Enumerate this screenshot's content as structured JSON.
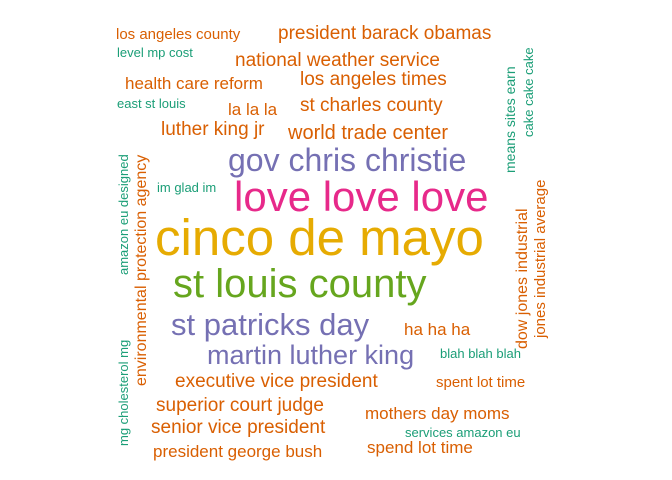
{
  "palette": {
    "teal": "#1b9e77",
    "orange": "#d95f02",
    "purple": "#7570b3",
    "pink": "#e7298a",
    "green": "#66a61e",
    "gold": "#e6ab02"
  },
  "words": [
    {
      "text": "cinco de mayo",
      "color": "gold",
      "freq": 1.0
    },
    {
      "text": "love love love",
      "color": "pink",
      "freq": 0.78
    },
    {
      "text": "st louis county",
      "color": "green",
      "freq": 0.74
    },
    {
      "text": "gov chris christie",
      "color": "purple",
      "freq": 0.62
    },
    {
      "text": "st patricks day",
      "color": "purple",
      "freq": 0.6
    },
    {
      "text": "martin luther king",
      "color": "purple",
      "freq": 0.52
    },
    {
      "text": "president barack obamas",
      "color": "orange",
      "freq": 0.4
    },
    {
      "text": "national weather service",
      "color": "orange",
      "freq": 0.4
    },
    {
      "text": "los angeles times",
      "color": "orange",
      "freq": 0.4
    },
    {
      "text": "st charles county",
      "color": "orange",
      "freq": 0.4
    },
    {
      "text": "world trade center",
      "color": "orange",
      "freq": 0.4
    },
    {
      "text": "luther king jr",
      "color": "orange",
      "freq": 0.38
    },
    {
      "text": "executive vice president",
      "color": "orange",
      "freq": 0.38
    },
    {
      "text": "superior court judge",
      "color": "orange",
      "freq": 0.38
    },
    {
      "text": "senior vice president",
      "color": "orange",
      "freq": 0.38
    },
    {
      "text": "health care reform",
      "color": "orange",
      "freq": 0.36
    },
    {
      "text": "mothers day moms",
      "color": "orange",
      "freq": 0.36
    },
    {
      "text": "ha ha ha",
      "color": "orange",
      "freq": 0.36
    },
    {
      "text": "la la la",
      "color": "orange",
      "freq": 0.34
    },
    {
      "text": "president george bush",
      "color": "orange",
      "freq": 0.34
    },
    {
      "text": "spend lot time",
      "color": "orange",
      "freq": 0.34
    },
    {
      "text": "environmental protection agency",
      "color": "orange",
      "freq": 0.34
    },
    {
      "text": "dow jones industrial",
      "color": "orange",
      "freq": 0.34
    },
    {
      "text": "jones industrial average",
      "color": "orange",
      "freq": 0.32
    },
    {
      "text": "los angeles county",
      "color": "orange",
      "freq": 0.32
    },
    {
      "text": "spent lot time",
      "color": "orange",
      "freq": 0.3
    },
    {
      "text": "means sites earn",
      "color": "teal",
      "freq": 0.28
    },
    {
      "text": "cake cake cake",
      "color": "teal",
      "freq": 0.26
    },
    {
      "text": "amazon eu designed",
      "color": "teal",
      "freq": 0.26
    },
    {
      "text": "mg cholesterol mg",
      "color": "teal",
      "freq": 0.26
    },
    {
      "text": "level mp cost",
      "color": "teal",
      "freq": 0.24
    },
    {
      "text": "east st louis",
      "color": "teal",
      "freq": 0.24
    },
    {
      "text": "im glad im",
      "color": "teal",
      "freq": 0.24
    },
    {
      "text": "blah blah blah",
      "color": "teal",
      "freq": 0.24
    },
    {
      "text": "services amazon eu",
      "color": "teal",
      "freq": 0.24
    }
  ]
}
